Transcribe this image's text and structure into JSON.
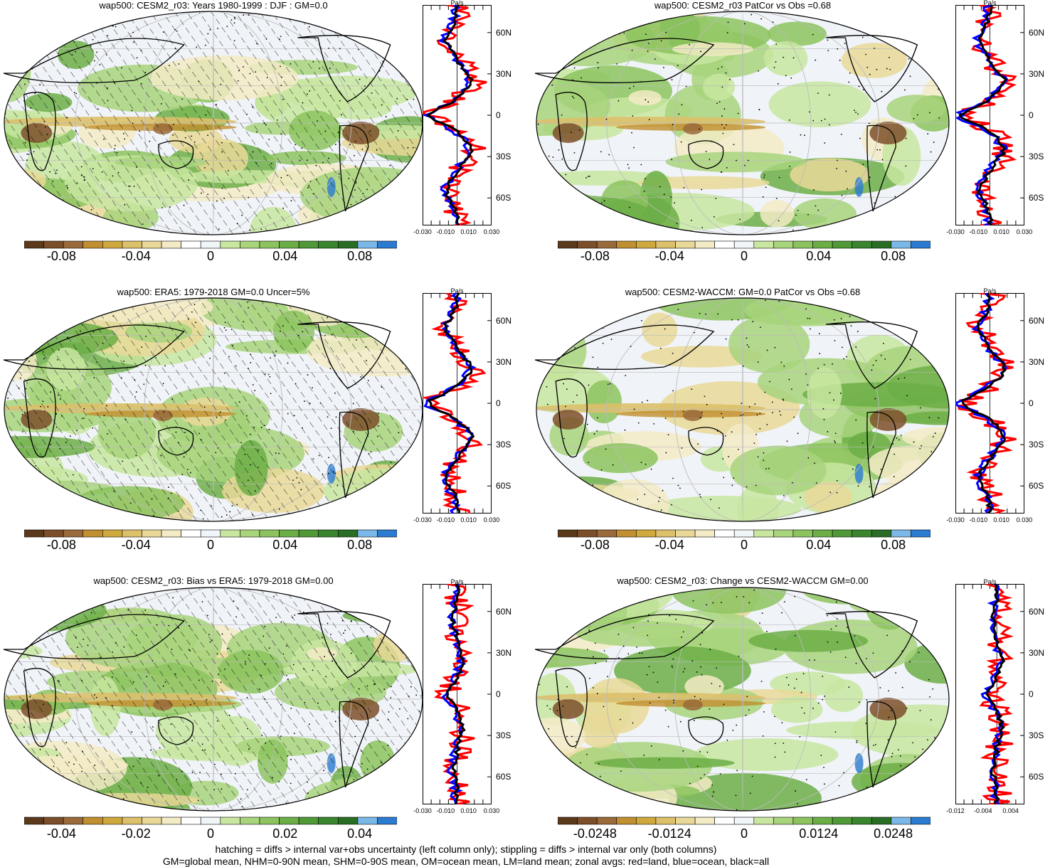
{
  "colors": {
    "scale": [
      "#5b3a1c",
      "#7c4f2a",
      "#9a6a3a",
      "#c08f30",
      "#d0a93e",
      "#dcc06a",
      "#e9d898",
      "#f3ebc6",
      "#ffffff",
      "#f0f5f8",
      "#c8e6a0",
      "#a8d47c",
      "#8cc35e",
      "#6cae46",
      "#4f9a36",
      "#3a852e",
      "#2a6e26",
      "#7ab8e8",
      "#2b7bd0"
    ],
    "red": "#ff0000",
    "blue": "#0000ff",
    "black": "#000000"
  },
  "icons": [
    "world-map-contour-icon"
  ],
  "panels": [
    {
      "title": "wap500: CESM2_r03: Years 1980-1999 : DJF : GM=0.0",
      "hatched": true,
      "colorbar_ticks": [
        "-0.08",
        "-0.04",
        "0",
        "0.04",
        "0.08"
      ],
      "zonal_unit": "Pa/s",
      "zonal_xticks": [
        "-0.030",
        "-0.010",
        "0.010",
        "0.030"
      ],
      "zonal_lat_labels": [
        "60N",
        "30N",
        "0",
        "30S",
        "60S"
      ]
    },
    {
      "title": "wap500: CESM2_r03 PatCor vs Obs =0.68",
      "hatched": false,
      "colorbar_ticks": [
        "-0.08",
        "-0.04",
        "0",
        "0.04",
        "0.08"
      ],
      "zonal_unit": "Pa/s",
      "zonal_xticks": [
        "-0.030",
        "-0.010",
        "0.010",
        "0.030"
      ],
      "zonal_lat_labels": [
        "60N",
        "30N",
        "0",
        "30S",
        "60S"
      ]
    },
    {
      "title": "wap500: ERA5: 1979-2018 GM=0.0 Uncer=5%",
      "hatched": true,
      "colorbar_ticks": [
        "-0.08",
        "-0.04",
        "0",
        "0.04",
        "0.08"
      ],
      "zonal_unit": "Pa/s",
      "zonal_xticks": [
        "-0.030",
        "-0.010",
        "0.010",
        "0.030"
      ],
      "zonal_lat_labels": [
        "60N",
        "30N",
        "0",
        "30S",
        "60S"
      ]
    },
    {
      "title": "wap500: CESM2-WACCM: GM=0.0 PatCor vs Obs =0.68",
      "hatched": false,
      "colorbar_ticks": [
        "-0.08",
        "-0.04",
        "0",
        "0.04",
        "0.08"
      ],
      "zonal_unit": "Pa/s",
      "zonal_xticks": [
        "-0.030",
        "-0.010",
        "0.010",
        "0.030"
      ],
      "zonal_lat_labels": [
        "60N",
        "30N",
        "0",
        "30S",
        "60S"
      ]
    },
    {
      "title": "wap500: CESM2_r03: Bias vs ERA5: 1979-2018 GM=0.00",
      "hatched": true,
      "colorbar_ticks": [
        "-0.04",
        "-0.02",
        "0",
        "0.02",
        "0.04"
      ],
      "zonal_unit": "Pa/s",
      "zonal_xticks": [
        "-0.030",
        "-0.010",
        "0.010",
        "0.030"
      ],
      "zonal_lat_labels": [
        "60N",
        "30N",
        "0",
        "30S",
        "60S"
      ]
    },
    {
      "title": "wap500: CESM2_r03: Change vs CESM2-WACCM GM=0.00",
      "hatched": false,
      "colorbar_ticks": [
        "-0.0248",
        "-0.0124",
        "0",
        "0.0124",
        "0.0248"
      ],
      "zonal_unit": "Pa/s",
      "zonal_xticks": [
        "-0.012",
        "-0.004",
        "0.004"
      ],
      "zonal_lat_labels": [
        "60N",
        "30N",
        "0",
        "30S",
        "60S"
      ]
    }
  ],
  "footer": {
    "line1": "hatching = diffs > internal var+obs uncertainty (left column only); stippling = diffs > internal var only (both columns)",
    "line2": "GM=global mean, NHM=0-90N mean, SHM=0-90S mean, OM=ocean mean, LM=land mean; zonal avgs: red=land, blue=ocean, black=all"
  },
  "chart_data": [
    {
      "type": "map",
      "title": "wap500: CESM2_r03: Years 1980-1999 : DJF : GM=0.0",
      "colorbar_range": [
        -0.1,
        0.1
      ],
      "zonal_xlim": [
        -0.03,
        0.03
      ],
      "zonal_ylim": [
        -80,
        80
      ]
    },
    {
      "type": "map",
      "title": "wap500: CESM2_r03 PatCor vs Obs =0.68",
      "colorbar_range": [
        -0.1,
        0.1
      ],
      "zonal_xlim": [
        -0.03,
        0.03
      ],
      "zonal_ylim": [
        -80,
        80
      ]
    },
    {
      "type": "map",
      "title": "wap500: ERA5: 1979-2018 GM=0.0 Uncer=5%",
      "colorbar_range": [
        -0.1,
        0.1
      ],
      "zonal_xlim": [
        -0.03,
        0.03
      ],
      "zonal_ylim": [
        -80,
        80
      ]
    },
    {
      "type": "map",
      "title": "wap500: CESM2-WACCM: GM=0.0 PatCor vs Obs =0.68",
      "colorbar_range": [
        -0.1,
        0.1
      ],
      "zonal_xlim": [
        -0.03,
        0.03
      ],
      "zonal_ylim": [
        -80,
        80
      ]
    },
    {
      "type": "map",
      "title": "wap500: CESM2_r03: Bias vs ERA5: 1979-2018 GM=0.00",
      "colorbar_range": [
        -0.05,
        0.05
      ],
      "zonal_xlim": [
        -0.03,
        0.03
      ],
      "zonal_ylim": [
        -80,
        80
      ]
    },
    {
      "type": "map",
      "title": "wap500: CESM2_r03: Change vs CESM2-WACCM GM=0.00",
      "colorbar_range": [
        -0.031,
        0.031
      ],
      "zonal_xlim": [
        -0.012,
        0.008
      ],
      "zonal_ylim": [
        -80,
        80
      ]
    }
  ]
}
